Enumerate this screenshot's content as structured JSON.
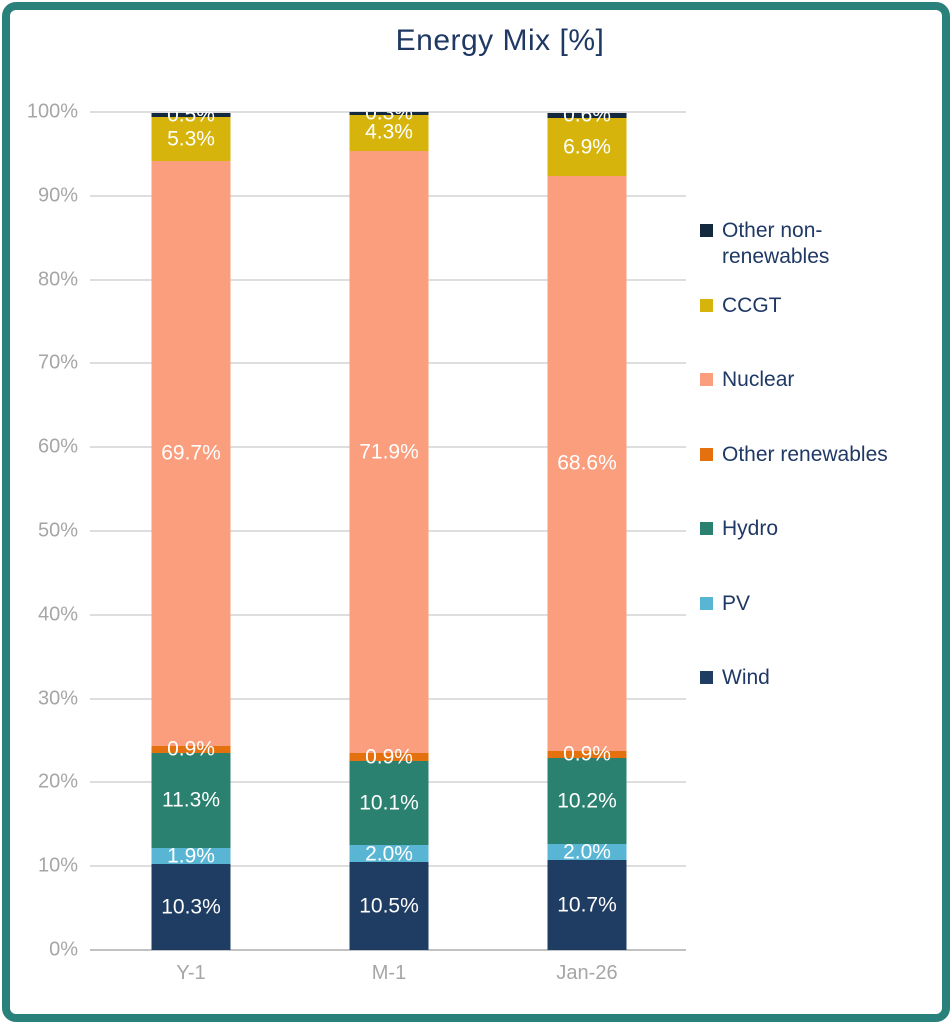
{
  "title": "Energy Mix [%]",
  "chart_data": {
    "type": "bar",
    "stacked": true,
    "title": "Energy Mix [%]",
    "categories": [
      "Y-1",
      "M-1",
      "Jan-26"
    ],
    "series": [
      {
        "name": "Other non-renewables",
        "color": "#15293e",
        "values": [
          0.5,
          0.3,
          0.6
        ]
      },
      {
        "name": "CCGT",
        "color": "#d6b40c",
        "values": [
          5.3,
          4.3,
          6.9
        ]
      },
      {
        "name": "Nuclear",
        "color": "#fa9e7d",
        "values": [
          69.7,
          71.9,
          68.6
        ]
      },
      {
        "name": "Other renewables",
        "color": "#e4700e",
        "values": [
          0.9,
          0.9,
          0.9
        ]
      },
      {
        "name": "Hydro",
        "color": "#2a8170",
        "values": [
          11.3,
          10.1,
          10.2
        ]
      },
      {
        "name": "PV",
        "color": "#58b6d4",
        "values": [
          1.9,
          2.0,
          2.0
        ]
      },
      {
        "name": "Wind",
        "color": "#1f3c63",
        "values": [
          10.3,
          10.5,
          10.7
        ]
      }
    ],
    "yticks": [
      "0%",
      "10%",
      "20%",
      "30%",
      "40%",
      "50%",
      "60%",
      "70%",
      "80%",
      "90%",
      "100%"
    ],
    "ylim": [
      0,
      100
    ],
    "xlabel": "",
    "ylabel": "",
    "grid": true,
    "legend_position": "right",
    "value_label_format": "one_decimal_percent",
    "value_label_color": "#ffffff"
  },
  "colors": {
    "frame_border": "#2a807a",
    "title_text": "#1f3864",
    "legend_text": "#1f3864",
    "axis_text": "#a6a6a6",
    "gridline": "#dedede",
    "axis_line": "#c2c2c2"
  }
}
